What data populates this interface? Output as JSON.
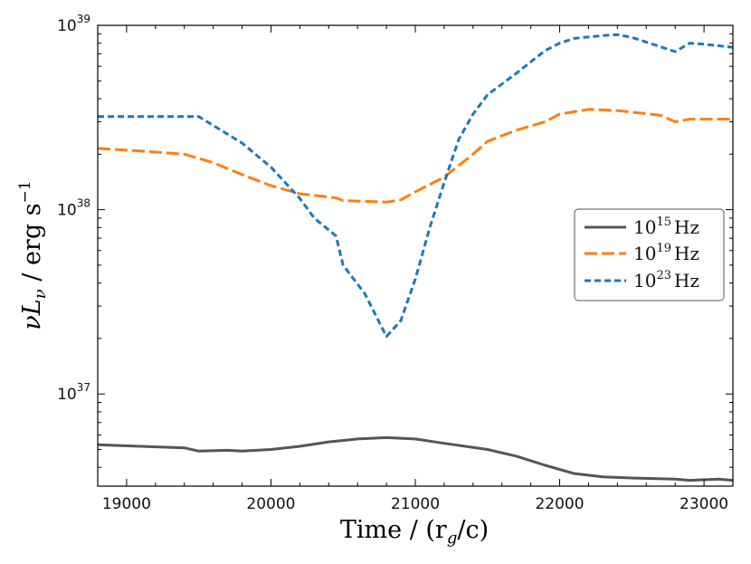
{
  "chart_data": {
    "type": "line",
    "xlabel": "Time / (r_g/c)",
    "xlabel_main": "Time",
    "xlabel_unit": "(r",
    "xlabel_sub": "g",
    "xlabel_tail": "/c)",
    "ylabel": "νL_ν / erg s^-1",
    "ylabel_main": "νL",
    "ylabel_sub": "ν",
    "ylabel_unit": "erg s",
    "ylabel_exp": "−1",
    "xlim": [
      18800,
      23200
    ],
    "ylim_log10": [
      36.5,
      39.0
    ],
    "yscale": "log",
    "x_ticks": [
      19000,
      20000,
      21000,
      22000,
      23000
    ],
    "x_tick_labels": [
      "19000",
      "20000",
      "21000",
      "22000",
      "23000"
    ],
    "y_major_ticks": [
      {
        "base": "10",
        "exp": "37",
        "log": 37
      },
      {
        "base": "10",
        "exp": "38",
        "log": 38
      },
      {
        "base": "10",
        "exp": "39",
        "log": 39
      }
    ],
    "legend_position": "center-right",
    "series": [
      {
        "name": "10^15 Hz",
        "label_base": "10",
        "label_exp": "15",
        "label_unit": "Hz",
        "color": "#555555",
        "dash": "solid",
        "x": [
          18800,
          19100,
          19400,
          19500,
          19700,
          19800,
          20000,
          20200,
          20400,
          20600,
          20800,
          21000,
          21200,
          21500,
          21700,
          21900,
          22100,
          22300,
          22500,
          22800,
          22900,
          23100,
          23200
        ],
        "y": [
          5.3e+36,
          5.2e+36,
          5.1e+36,
          4.9e+36,
          4.95e+36,
          4.9e+36,
          5e+36,
          5.2e+36,
          5.5e+36,
          5.7e+36,
          5.8e+36,
          5.7e+36,
          5.4e+36,
          5e+36,
          4.6e+36,
          4.1e+36,
          3.7e+36,
          3.55e+36,
          3.5e+36,
          3.45e+36,
          3.4e+36,
          3.45e+36,
          3.4e+36
        ]
      },
      {
        "name": "10^19 Hz",
        "label_base": "10",
        "label_exp": "19",
        "label_unit": "Hz",
        "color": "#ff7f0e",
        "dash": "long-dash",
        "x": [
          18800,
          19100,
          19400,
          19600,
          19800,
          20000,
          20200,
          20450,
          20500,
          20800,
          20900,
          21000,
          21200,
          21400,
          21500,
          21700,
          21900,
          22000,
          22200,
          22400,
          22700,
          22800,
          22900,
          23200
        ],
        "y": [
          2.15e+38,
          2.08e+38,
          2e+38,
          1.8e+38,
          1.55e+38,
          1.35e+38,
          1.22e+38,
          1.16e+38,
          1.12e+38,
          1.1e+38,
          1.13e+38,
          1.25e+38,
          1.5e+38,
          2e+38,
          2.35e+38,
          2.7e+38,
          3e+38,
          3.3e+38,
          3.5e+38,
          3.45e+38,
          3.25e+38,
          3e+38,
          3.1e+38,
          3.1e+38
        ]
      },
      {
        "name": "10^23 Hz",
        "label_base": "10",
        "label_exp": "23",
        "label_unit": "Hz",
        "color": "#1f77b4",
        "dash": "short-dash",
        "x": [
          18800,
          19000,
          19300,
          19500,
          19800,
          20000,
          20200,
          20300,
          20450,
          20500,
          20650,
          20800,
          20900,
          21000,
          21100,
          21200,
          21300,
          21400,
          21500,
          21700,
          21900,
          22000,
          22100,
          22300,
          22400,
          22500,
          22800,
          22900,
          23000,
          23200
        ],
        "y": [
          3.2e+38,
          3.2e+38,
          3.2e+38,
          3.2e+38,
          2.3e+38,
          1.7e+38,
          1.15e+38,
          9e+37,
          7.2e+37,
          5e+37,
          3.5e+37,
          2.05e+37,
          2.5e+37,
          4.2e+37,
          8e+37,
          1.4e+38,
          2.4e+38,
          3.3e+38,
          4.2e+38,
          5.5e+38,
          7.3e+38,
          8e+38,
          8.5e+38,
          8.8e+38,
          8.9e+38,
          8.6e+38,
          7.2e+38,
          8e+38,
          7.9e+38,
          7.6e+38
        ]
      }
    ]
  }
}
